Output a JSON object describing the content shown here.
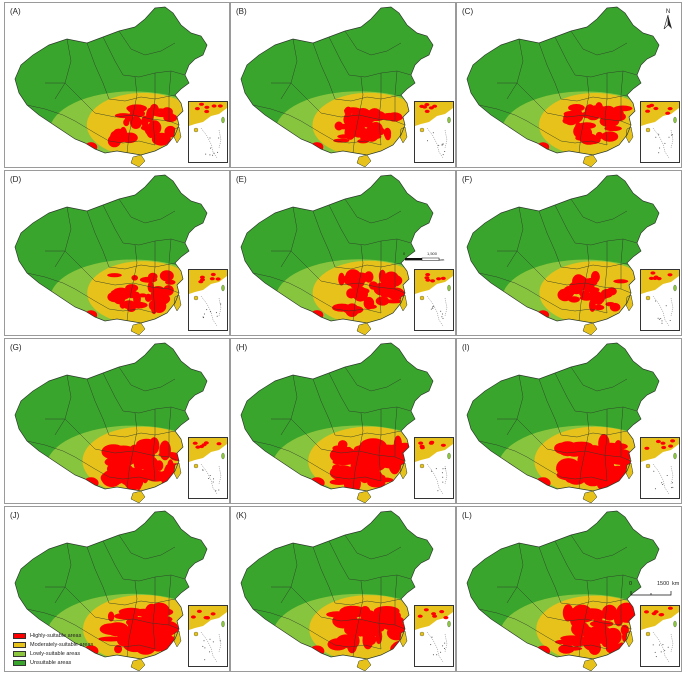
{
  "colors": {
    "highly": "#ff0000",
    "moderately": "#e6c21a",
    "lowly": "#8cc63f",
    "unsuitable": "#3aa52c",
    "boundary": "#2d3b2d"
  },
  "panels": [
    {
      "label": "(A)",
      "hotspot": 0.42
    },
    {
      "label": "(B)",
      "hotspot": 0.45
    },
    {
      "label": "(C)",
      "hotspot": 0.4,
      "north_arrow": "N"
    },
    {
      "label": "(D)",
      "hotspot": 0.38
    },
    {
      "label": "(E)",
      "hotspot": 0.44,
      "scale_bar": {
        "start": "0",
        "mid": "1,500",
        "unit": "km"
      }
    },
    {
      "label": "(F)",
      "hotspot": 0.36
    },
    {
      "label": "(G)",
      "hotspot": 0.85
    },
    {
      "label": "(H)",
      "hotspot": 0.88
    },
    {
      "label": "(I)",
      "hotspot": 0.86
    },
    {
      "label": "(J)",
      "hotspot": 0.8,
      "legend": true
    },
    {
      "label": "(K)",
      "hotspot": 0.78
    },
    {
      "label": "(L)",
      "hotspot": 0.68,
      "scale_bar_l": {
        "start": "0",
        "end": "1500",
        "unit": "km"
      }
    }
  ],
  "legend": [
    {
      "label": "Highly-suitable areas",
      "color_key": "highly"
    },
    {
      "label": "Moderately-suitable areas",
      "color_key": "moderately"
    },
    {
      "label": "Lowly-suitable areas",
      "color_key": "lowly"
    },
    {
      "label": "Unsuitable areas",
      "color_key": "unsuitable"
    }
  ]
}
